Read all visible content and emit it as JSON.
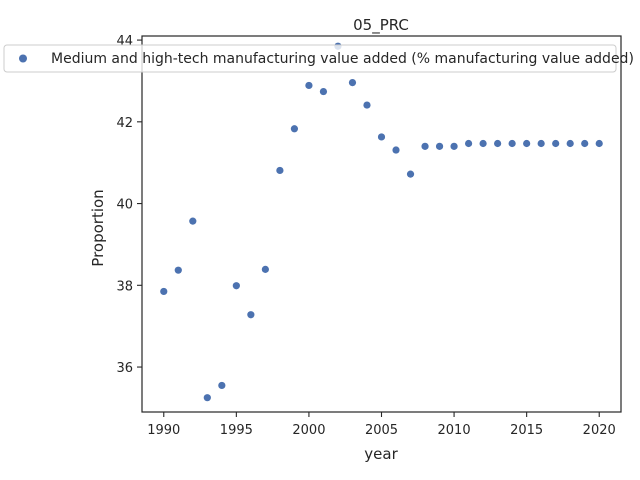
{
  "chart_data": {
    "type": "scatter",
    "title": "05_PRC",
    "xlabel": "year",
    "ylabel": "Proportion",
    "xlim": [
      1988.5,
      2021.5
    ],
    "ylim": [
      34.9,
      44.1
    ],
    "xticks": [
      1990,
      1995,
      2000,
      2005,
      2010,
      2015,
      2020
    ],
    "yticks": [
      36,
      38,
      40,
      42,
      44
    ],
    "grid": false,
    "legend_position": "top",
    "marker_color": "#4c72b0",
    "series": [
      {
        "name": "Medium and high-tech manufacturing value added (% manufacturing value added)",
        "x": [
          1990,
          1991,
          1992,
          1993,
          1994,
          1995,
          1996,
          1997,
          1998,
          1999,
          2000,
          2001,
          2002,
          2003,
          2004,
          2005,
          2006,
          2007,
          2008,
          2009,
          2010,
          2011,
          2012,
          2013,
          2014,
          2015,
          2016,
          2017,
          2018,
          2019,
          2020
        ],
        "y": [
          37.85,
          38.37,
          39.57,
          35.25,
          35.55,
          37.99,
          37.28,
          38.39,
          40.81,
          41.83,
          42.89,
          42.74,
          43.85,
          42.96,
          42.41,
          41.63,
          41.31,
          40.72,
          41.4,
          41.4,
          41.4,
          41.47,
          41.47,
          41.47,
          41.47,
          41.47,
          41.47,
          41.47,
          41.47,
          41.47,
          41.47
        ]
      }
    ]
  }
}
